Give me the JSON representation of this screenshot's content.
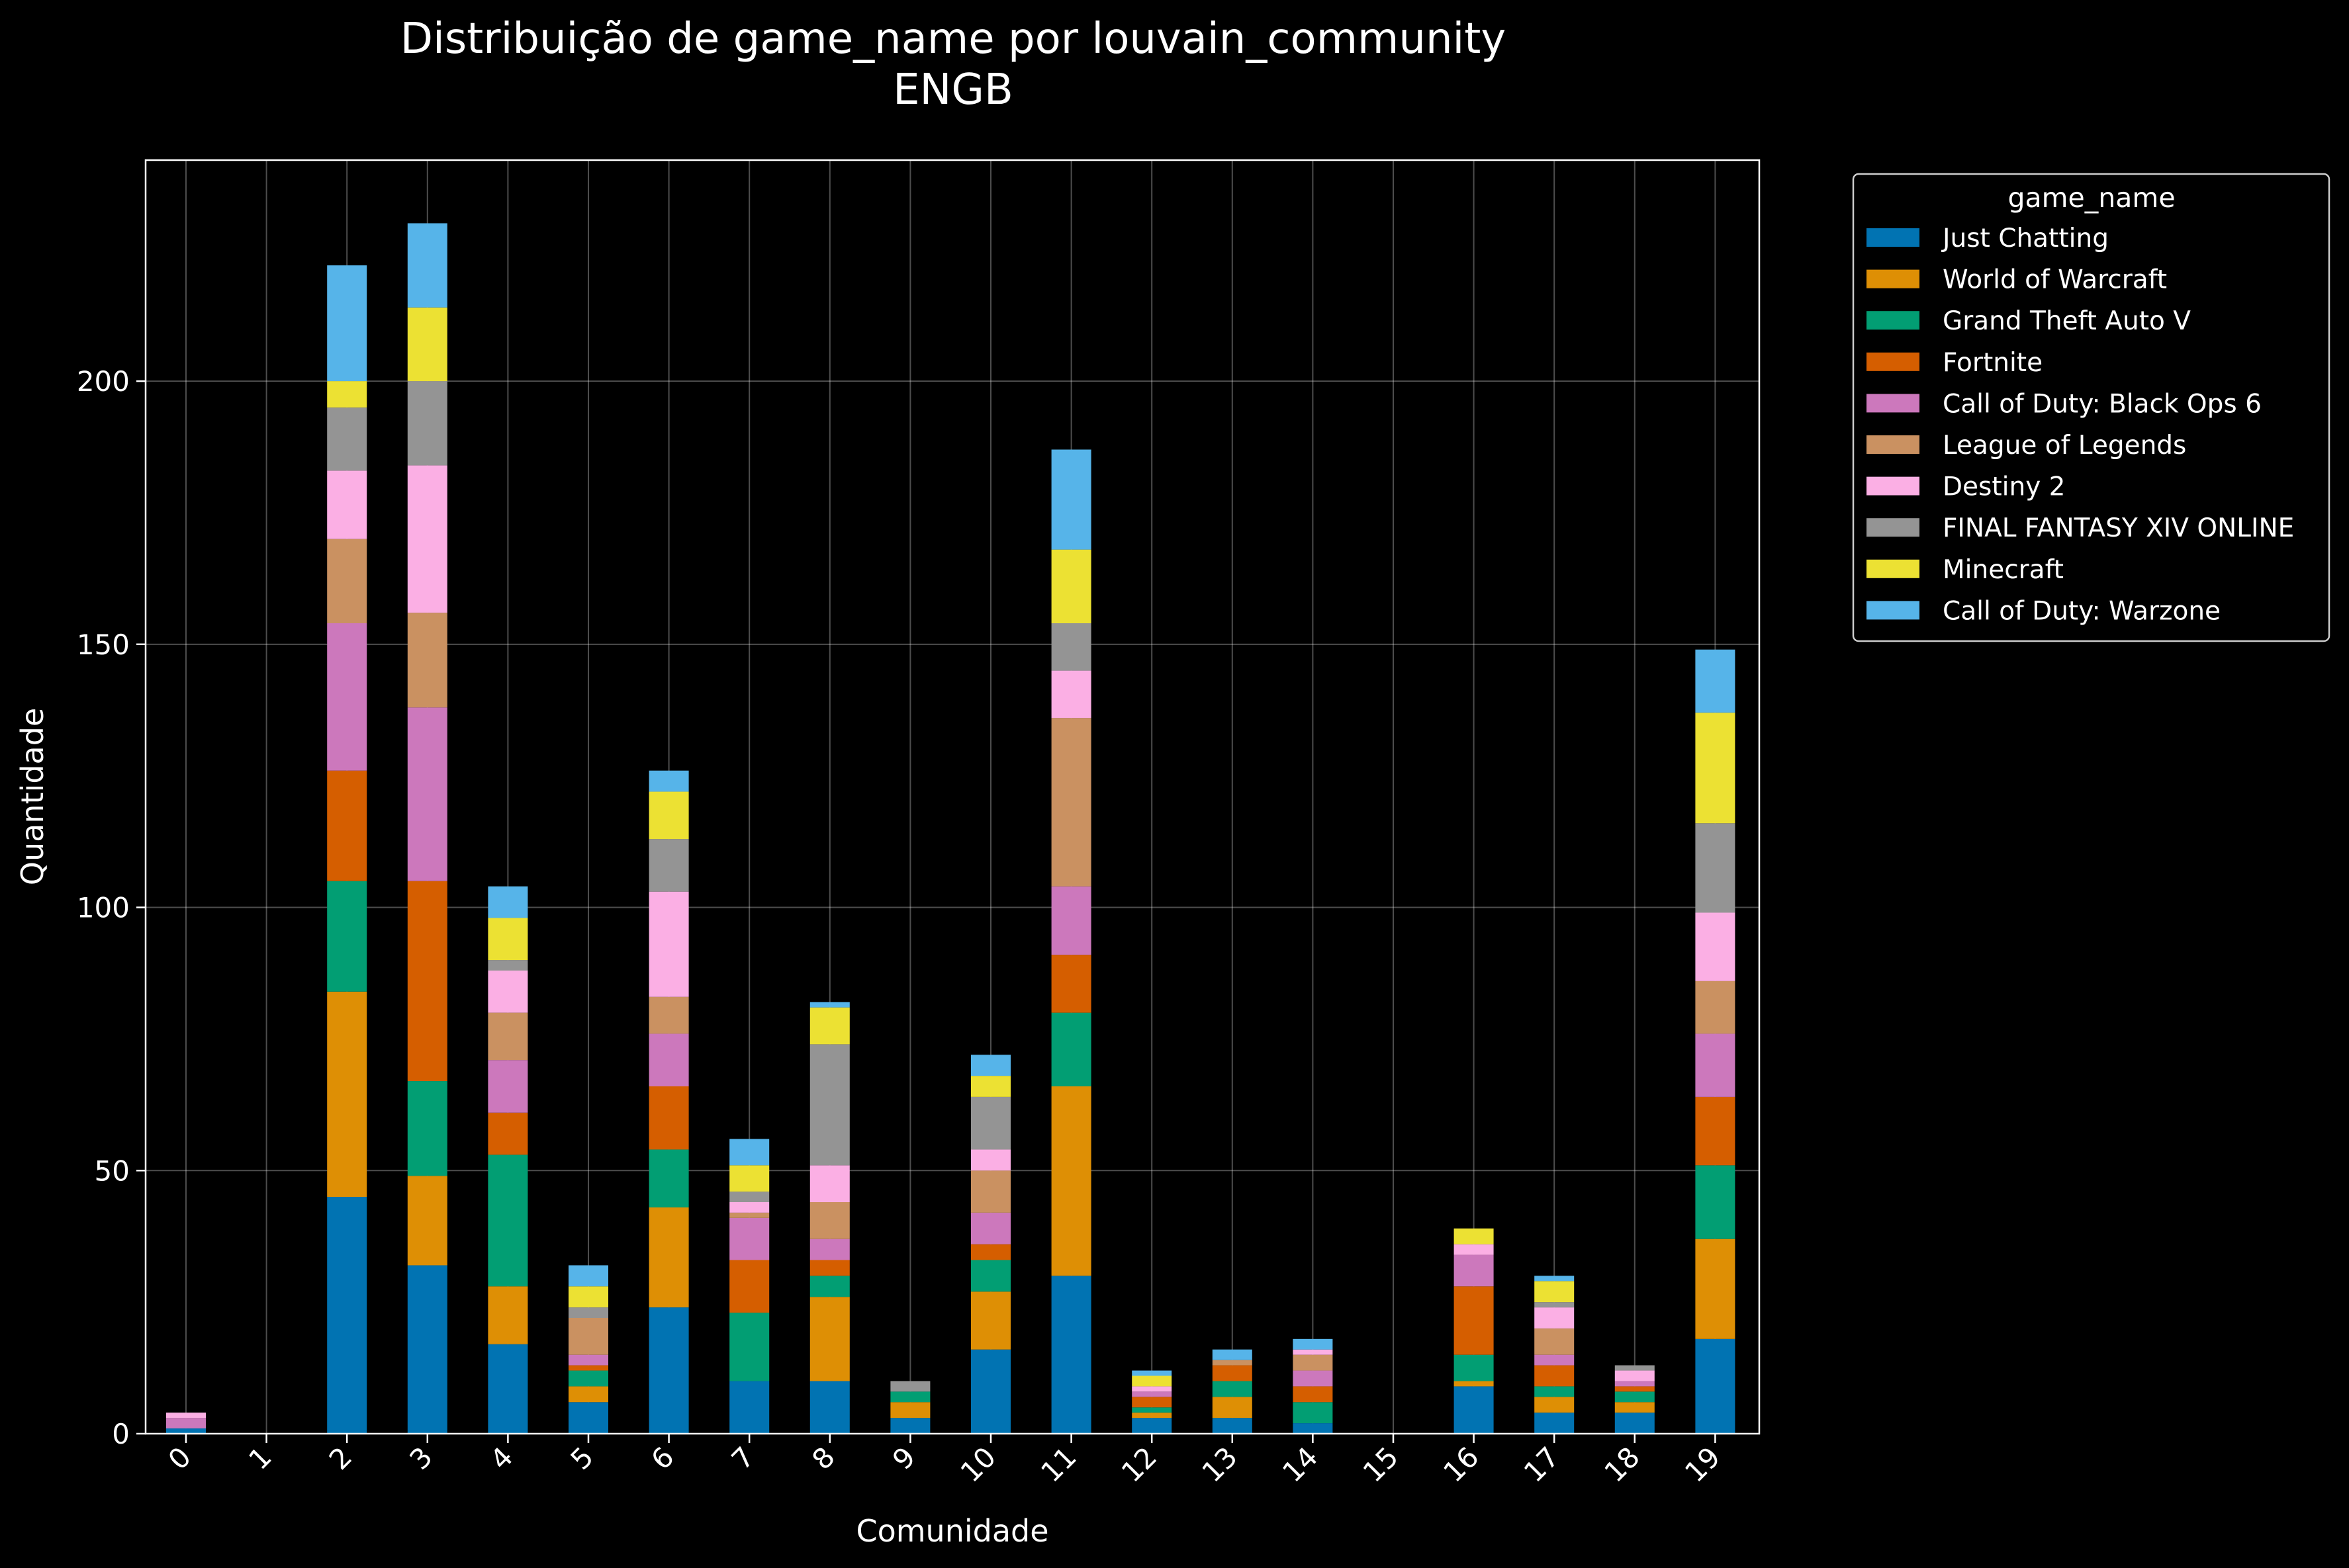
{
  "chart_data": {
    "type": "bar",
    "stacked": true,
    "title": "Distribuição de game_name por louvain_community",
    "subtitle": "ENGB",
    "xlabel": "Comunidade",
    "ylabel": "Quantidade",
    "ylim": [
      0,
      242
    ],
    "yticks": [
      0,
      50,
      100,
      150,
      200
    ],
    "grid": true,
    "legend_title": "game_name",
    "legend_position": "outside-right",
    "categories": [
      "0",
      "1",
      "2",
      "3",
      "4",
      "5",
      "6",
      "7",
      "8",
      "9",
      "10",
      "11",
      "12",
      "13",
      "14",
      "15",
      "16",
      "17",
      "18",
      "19"
    ],
    "series": [
      {
        "name": "Just Chatting",
        "color": "#0173b2",
        "values": [
          1,
          0,
          45,
          32,
          17,
          6,
          24,
          10,
          10,
          3,
          16,
          30,
          3,
          3,
          2,
          0,
          9,
          4,
          4,
          18
        ]
      },
      {
        "name": "World of Warcraft",
        "color": "#de8f05",
        "values": [
          0,
          0,
          39,
          17,
          11,
          3,
          19,
          0,
          16,
          3,
          11,
          36,
          1,
          4,
          0,
          0,
          1,
          3,
          2,
          19
        ]
      },
      {
        "name": "Grand Theft Auto V",
        "color": "#029e73",
        "values": [
          0,
          0,
          21,
          18,
          25,
          3,
          11,
          13,
          4,
          2,
          6,
          14,
          1,
          3,
          4,
          0,
          5,
          2,
          2,
          14
        ]
      },
      {
        "name": "Fortnite",
        "color": "#d55e00",
        "values": [
          0,
          0,
          21,
          38,
          8,
          1,
          12,
          10,
          3,
          0,
          3,
          11,
          2,
          3,
          3,
          0,
          13,
          4,
          1,
          13
        ]
      },
      {
        "name": "Call of Duty: Black Ops 6",
        "color": "#cc78bc",
        "values": [
          2,
          0,
          28,
          33,
          10,
          2,
          10,
          8,
          4,
          0,
          6,
          13,
          1,
          0,
          3,
          0,
          6,
          2,
          1,
          12
        ]
      },
      {
        "name": "League of Legends",
        "color": "#ca9161",
        "values": [
          0,
          0,
          16,
          18,
          9,
          7,
          7,
          1,
          7,
          0,
          8,
          32,
          0,
          1,
          3,
          0,
          0,
          5,
          0,
          10
        ]
      },
      {
        "name": "Destiny 2",
        "color": "#fbafe4",
        "values": [
          1,
          0,
          13,
          28,
          8,
          0,
          20,
          2,
          7,
          0,
          4,
          9,
          1,
          0,
          1,
          0,
          2,
          4,
          2,
          13
        ]
      },
      {
        "name": "FINAL FANTASY XIV ONLINE",
        "color": "#949494",
        "values": [
          0,
          0,
          12,
          16,
          2,
          2,
          10,
          2,
          23,
          2,
          10,
          9,
          0,
          0,
          0,
          0,
          0,
          1,
          1,
          17
        ]
      },
      {
        "name": "Minecraft",
        "color": "#ece133",
        "values": [
          0,
          0,
          5,
          14,
          8,
          4,
          9,
          5,
          7,
          0,
          4,
          14,
          2,
          0,
          0,
          0,
          3,
          4,
          0,
          21
        ]
      },
      {
        "name": "Call of Duty: Warzone",
        "color": "#56b4e9",
        "values": [
          0,
          0,
          22,
          16,
          6,
          4,
          4,
          5,
          1,
          0,
          4,
          19,
          1,
          2,
          2,
          0,
          0,
          1,
          0,
          12
        ]
      }
    ]
  }
}
